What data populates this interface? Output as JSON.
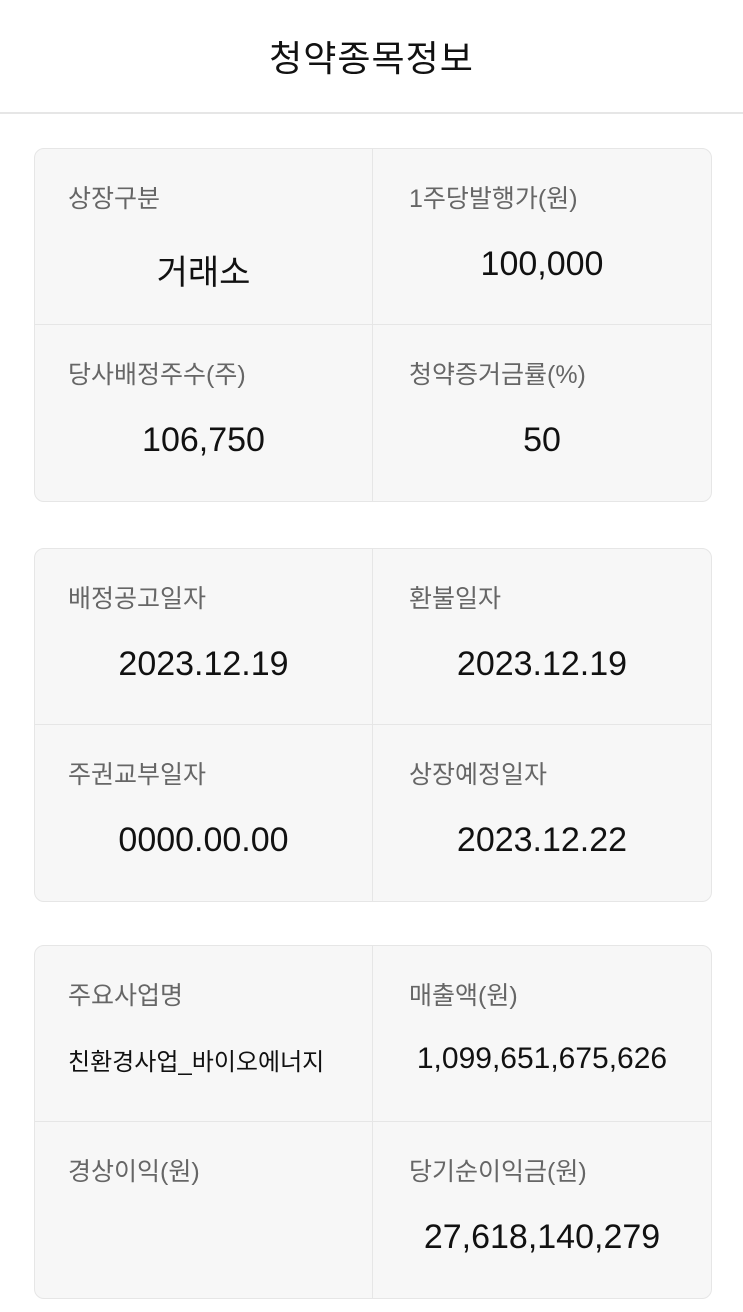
{
  "header": {
    "title": "청약종목정보"
  },
  "cards": [
    {
      "cells": [
        {
          "label": "상장구분",
          "value": "거래소"
        },
        {
          "label": "1주당발행가(원)",
          "value": "100,000"
        },
        {
          "label": "당사배정주수(주)",
          "value": "106,750"
        },
        {
          "label": "청약증거금률(%)",
          "value": "50"
        }
      ]
    },
    {
      "cells": [
        {
          "label": "배정공고일자",
          "value": "2023.12.19"
        },
        {
          "label": "환불일자",
          "value": "2023.12.19"
        },
        {
          "label": "주권교부일자",
          "value": "0000.00.00"
        },
        {
          "label": "상장예정일자",
          "value": "2023.12.22"
        }
      ]
    },
    {
      "cells": [
        {
          "label": "주요사업명",
          "value": "친환경사업_바이오에너지"
        },
        {
          "label": "매출액(원)",
          "value": "1,099,651,675,626"
        },
        {
          "label": "경상이익(원)",
          "value": ""
        },
        {
          "label": "당기순이익금(원)",
          "value": "27,618,140,279"
        }
      ]
    }
  ]
}
